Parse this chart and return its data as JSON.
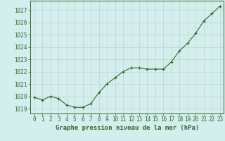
{
  "x": [
    0,
    1,
    2,
    3,
    4,
    5,
    6,
    7,
    8,
    9,
    10,
    11,
    12,
    13,
    14,
    15,
    16,
    17,
    18,
    19,
    20,
    21,
    22,
    23
  ],
  "y": [
    1019.9,
    1019.7,
    1020.0,
    1019.8,
    1019.3,
    1019.1,
    1019.1,
    1019.4,
    1020.3,
    1021.0,
    1021.5,
    1022.0,
    1022.3,
    1022.3,
    1022.2,
    1022.2,
    1022.2,
    1022.8,
    1023.7,
    1024.3,
    1025.1,
    1026.1,
    1026.7,
    1027.3
  ],
  "line_color": "#2d6a2d",
  "marker": "+",
  "bg_color": "#d4eeed",
  "grid_color": "#c0d8d4",
  "text_color": "#2d6a2d",
  "xlabel": "Graphe pression niveau de la mer (hPa)",
  "ylim_min": 1018.6,
  "ylim_max": 1027.75,
  "yticks": [
    1019,
    1020,
    1021,
    1022,
    1023,
    1024,
    1025,
    1026,
    1027
  ],
  "xticks": [
    0,
    1,
    2,
    3,
    4,
    5,
    6,
    7,
    8,
    9,
    10,
    11,
    12,
    13,
    14,
    15,
    16,
    17,
    18,
    19,
    20,
    21,
    22,
    23
  ],
  "tick_fontsize": 5.5,
  "xlabel_fontsize": 6.5
}
